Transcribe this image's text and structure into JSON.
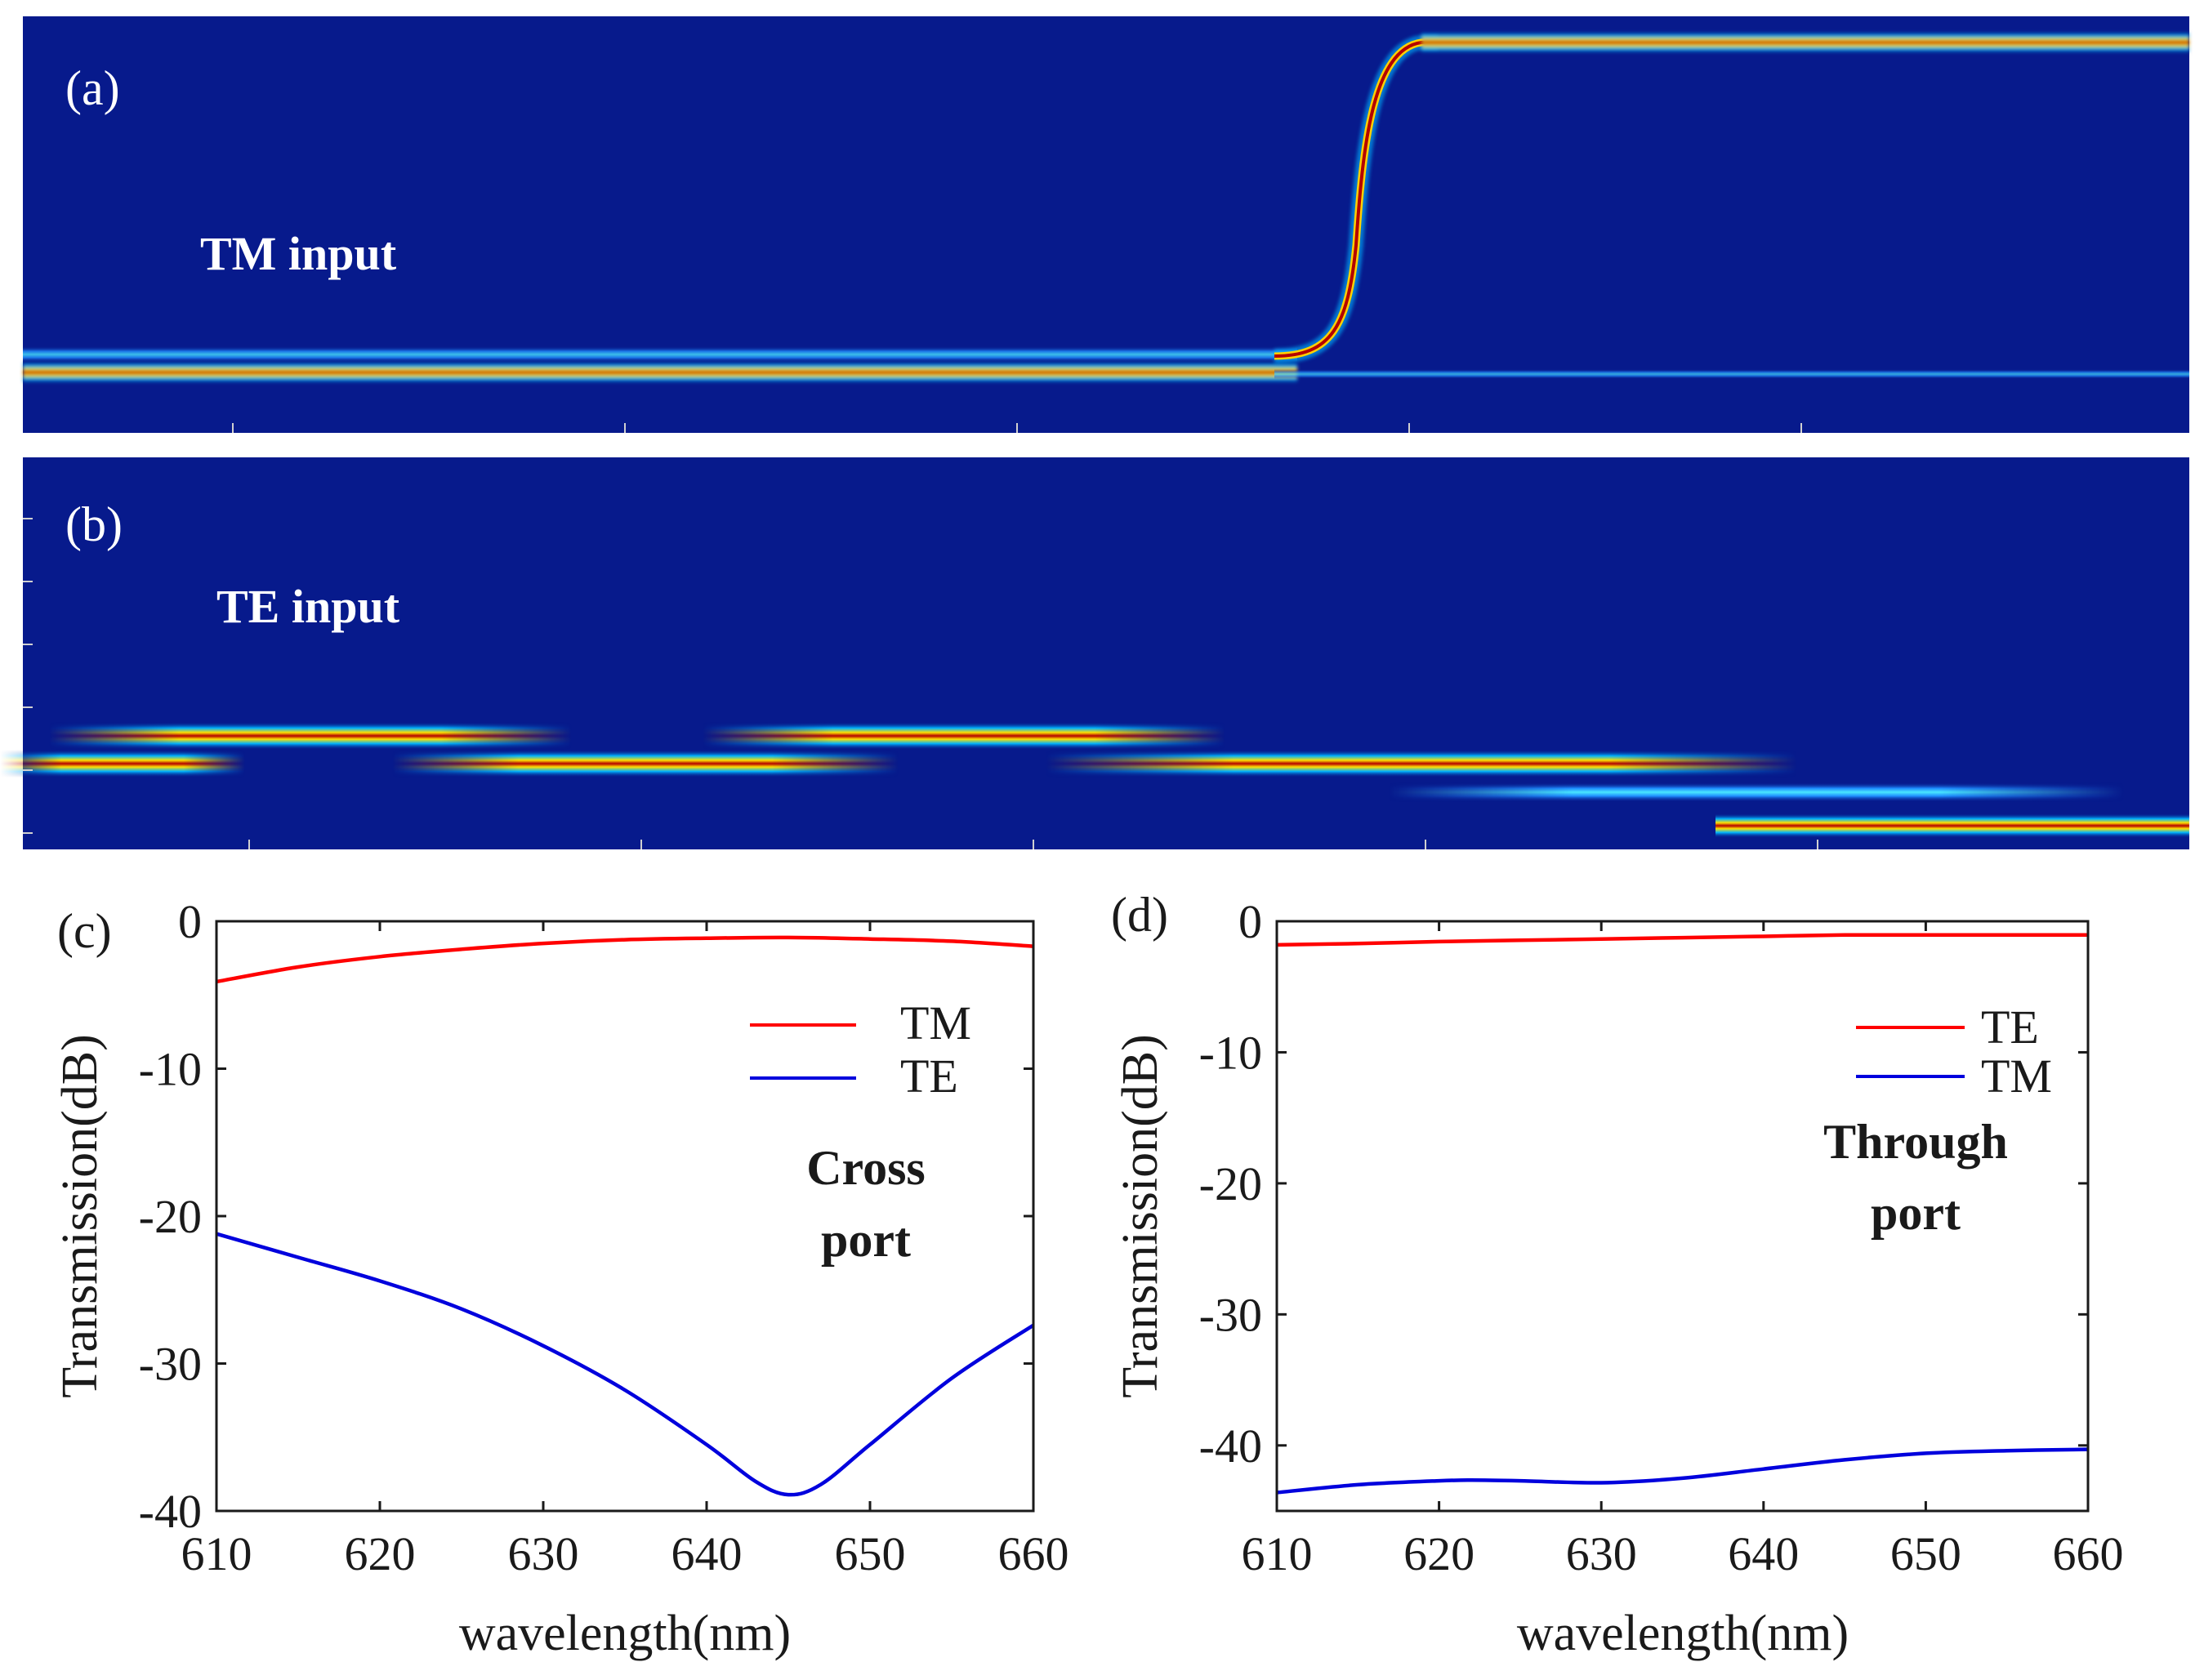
{
  "figure": {
    "panel_a": {
      "label": "(a)",
      "annotation": "TM input",
      "colors": {
        "background": "#071a8c",
        "mode_core": "#b40000",
        "mode_mid": "#ffe000",
        "mode_edge": "#00c8ff"
      }
    },
    "panel_b": {
      "label": "(b)",
      "annotation": "TE input",
      "colors": {
        "background": "#071a8c",
        "mode_core": "#b40000",
        "mode_mid": "#ffe000",
        "mode_edge": "#00c8ff"
      }
    }
  },
  "chart_data": [
    {
      "type": "line",
      "panel_label": "(c)",
      "title": "",
      "xlabel": "wavelength(nm)",
      "ylabel": "Transmission(dB)",
      "xlim": [
        610,
        660
      ],
      "ylim": [
        -40,
        0
      ],
      "xticks": [
        610,
        620,
        630,
        640,
        650,
        660
      ],
      "yticks": [
        0,
        -10,
        -20,
        -30,
        -40
      ],
      "xtick_labels": [
        "610",
        "620",
        "630",
        "640",
        "650",
        "660"
      ],
      "ytick_labels": [
        "0",
        "-10",
        "-20",
        "-30",
        "-40"
      ],
      "annotation_lines": [
        "Cross",
        "port"
      ],
      "legend_position": "upper-right",
      "series": [
        {
          "name": "TM",
          "color": "#ff0000",
          "x": [
            610,
            615,
            620,
            625,
            630,
            635,
            640,
            645,
            650,
            655,
            660
          ],
          "y": [
            -4.1,
            -3.1,
            -2.4,
            -1.9,
            -1.5,
            -1.25,
            -1.15,
            -1.1,
            -1.2,
            -1.35,
            -1.7
          ]
        },
        {
          "name": "TE",
          "color": "#0000dd",
          "x": [
            610,
            615,
            620,
            625,
            630,
            635,
            640,
            643,
            645,
            647,
            650,
            655,
            660
          ],
          "y": [
            -21.2,
            -22.8,
            -24.4,
            -26.3,
            -28.8,
            -31.8,
            -35.5,
            -38,
            -38.9,
            -38.2,
            -35.5,
            -31,
            -27.4
          ]
        }
      ]
    },
    {
      "type": "line",
      "panel_label": "(d)",
      "title": "",
      "xlabel": "wavelength(nm)",
      "ylabel": "Transmission(dB)",
      "xlim": [
        610,
        660
      ],
      "ylim": [
        -45,
        0
      ],
      "xticks": [
        610,
        620,
        630,
        640,
        650,
        660
      ],
      "yticks": [
        0,
        -10,
        -20,
        -30,
        -40
      ],
      "xtick_labels": [
        "610",
        "620",
        "630",
        "640",
        "650",
        "660"
      ],
      "ytick_labels": [
        "0",
        "-10",
        "-20",
        "-30",
        "-40"
      ],
      "annotation_lines": [
        "Through",
        "port"
      ],
      "legend_position": "upper-right",
      "series": [
        {
          "name": "TE",
          "color": "#ff0000",
          "x": [
            610,
            615,
            620,
            625,
            630,
            635,
            640,
            645,
            650,
            655,
            660
          ],
          "y": [
            -1.8,
            -1.7,
            -1.55,
            -1.45,
            -1.35,
            -1.25,
            -1.15,
            -1.05,
            -1.05,
            -1.05,
            -1.05
          ]
        },
        {
          "name": "TM",
          "color": "#0000dd",
          "x": [
            610,
            615,
            620,
            622,
            625,
            630,
            635,
            640,
            645,
            650,
            655,
            660
          ],
          "y": [
            -43.6,
            -43.0,
            -42.7,
            -42.65,
            -42.7,
            -42.85,
            -42.5,
            -41.8,
            -41.1,
            -40.6,
            -40.4,
            -40.3
          ]
        }
      ]
    }
  ]
}
